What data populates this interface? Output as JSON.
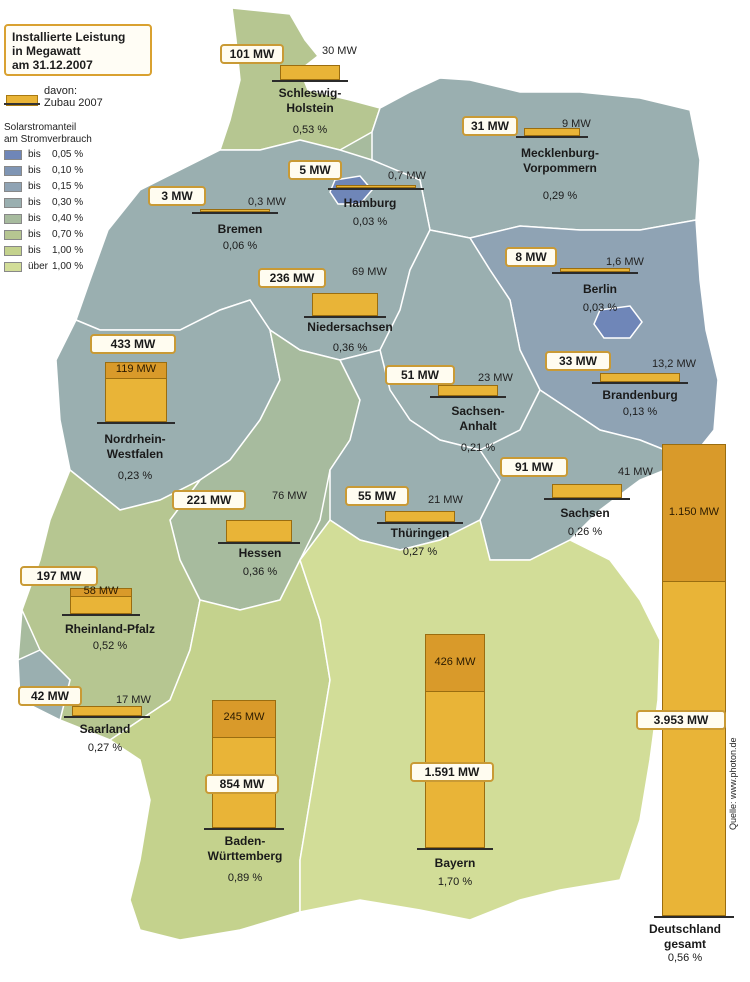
{
  "title": [
    "Installierte Leistung",
    "in Megawatt",
    "am 31.12.2007"
  ],
  "davon": [
    "davon:",
    "Zubau 2007"
  ],
  "legend": {
    "title": [
      "Solarstromanteil",
      "am Stromverbrauch"
    ],
    "items": [
      {
        "label": "bis",
        "value": "0,05 %",
        "color": "#6f86b8"
      },
      {
        "label": "bis",
        "value": "0,10 %",
        "color": "#7f95b4"
      },
      {
        "label": "bis",
        "value": "0,15 %",
        "color": "#8fa3b4"
      },
      {
        "label": "bis",
        "value": "0,30 %",
        "color": "#9aafb0"
      },
      {
        "label": "bis",
        "value": "0,40 %",
        "color": "#a7bb9e"
      },
      {
        "label": "bis",
        "value": "0,70 %",
        "color": "#b6c691"
      },
      {
        "label": "bis",
        "value": "1,00 %",
        "color": "#c4d28d"
      },
      {
        "label": "über",
        "value": "1,00 %",
        "color": "#d2dd98"
      }
    ]
  },
  "states": [
    {
      "id": "sh",
      "name": [
        "Schleswig-",
        "Holstein"
      ],
      "total": "101 MW",
      "added": "30 MW",
      "share": "0,53 %",
      "total_mw": 101,
      "added_mw": 30
    },
    {
      "id": "mv",
      "name": [
        "Mecklenburg-",
        "Vorpommern"
      ],
      "total": "31 MW",
      "added": "9 MW",
      "share": "0,29 %",
      "total_mw": 31,
      "added_mw": 9
    },
    {
      "id": "hh",
      "name": [
        "Hamburg"
      ],
      "total": "5 MW",
      "added": "0,7 MW",
      "share": "0,03 %",
      "total_mw": 5,
      "added_mw": 0.7
    },
    {
      "id": "hb",
      "name": [
        "Bremen"
      ],
      "total": "3 MW",
      "added": "0,3 MW",
      "share": "0,06 %",
      "total_mw": 3,
      "added_mw": 0.3
    },
    {
      "id": "be",
      "name": [
        "Berlin"
      ],
      "total": "8 MW",
      "added": "1,6 MW",
      "share": "0,03 %",
      "total_mw": 8,
      "added_mw": 1.6
    },
    {
      "id": "ni",
      "name": [
        "Niedersachsen"
      ],
      "total": "236 MW",
      "added": "69 MW",
      "share": "0,36 %",
      "total_mw": 236,
      "added_mw": 69
    },
    {
      "id": "nw",
      "name": [
        "Nordrhein-",
        "Westfalen"
      ],
      "total": "433 MW",
      "added": "119 MW",
      "share": "0,23 %",
      "total_mw": 433,
      "added_mw": 119
    },
    {
      "id": "st",
      "name": [
        "Sachsen-",
        "Anhalt"
      ],
      "total": "51 MW",
      "added": "23 MW",
      "share": "0,21 %",
      "total_mw": 51,
      "added_mw": 23
    },
    {
      "id": "bb",
      "name": [
        "Brandenburg"
      ],
      "total": "33 MW",
      "added": "13,2 MW",
      "share": "0,13 %",
      "total_mw": 33,
      "added_mw": 13.2
    },
    {
      "id": "sn",
      "name": [
        "Sachsen"
      ],
      "total": "91 MW",
      "added": "41 MW",
      "share": "0,26 %",
      "total_mw": 91,
      "added_mw": 41
    },
    {
      "id": "he",
      "name": [
        "Hessen"
      ],
      "total": "221 MW",
      "added": "76 MW",
      "share": "0,36 %",
      "total_mw": 221,
      "added_mw": 76
    },
    {
      "id": "th",
      "name": [
        "Thüringen"
      ],
      "total": "55 MW",
      "added": "21 MW",
      "share": "0,27 %",
      "total_mw": 55,
      "added_mw": 21
    },
    {
      "id": "rp",
      "name": [
        "Rheinland-Pfalz"
      ],
      "total": "197 MW",
      "added": "58 MW",
      "share": "0,52 %",
      "total_mw": 197,
      "added_mw": 58
    },
    {
      "id": "sl",
      "name": [
        "Saarland"
      ],
      "total": "42 MW",
      "added": "17 MW",
      "share": "0,27 %",
      "total_mw": 42,
      "added_mw": 17
    },
    {
      "id": "bw",
      "name": [
        "Baden-",
        "Württemberg"
      ],
      "total": "854 MW",
      "added": "245 MW",
      "share": "0,89 %",
      "total_mw": 854,
      "added_mw": 245
    },
    {
      "id": "by",
      "name": [
        "Bayern"
      ],
      "total": "1.591 MW",
      "added": "426 MW",
      "share": "1,70 %",
      "total_mw": 1591,
      "added_mw": 426
    },
    {
      "id": "de",
      "name": [
        "Deutschland",
        "gesamt"
      ],
      "total": "3.953 MW",
      "added": "1.150 MW",
      "share": "0,56 %",
      "total_mw": 3953,
      "added_mw": 1150
    }
  ],
  "source": "Quelle: www.photon.de",
  "colors": {
    "bar": "#e9b437",
    "bar_added": "#d99a2a",
    "box_border": "#c99a35"
  }
}
